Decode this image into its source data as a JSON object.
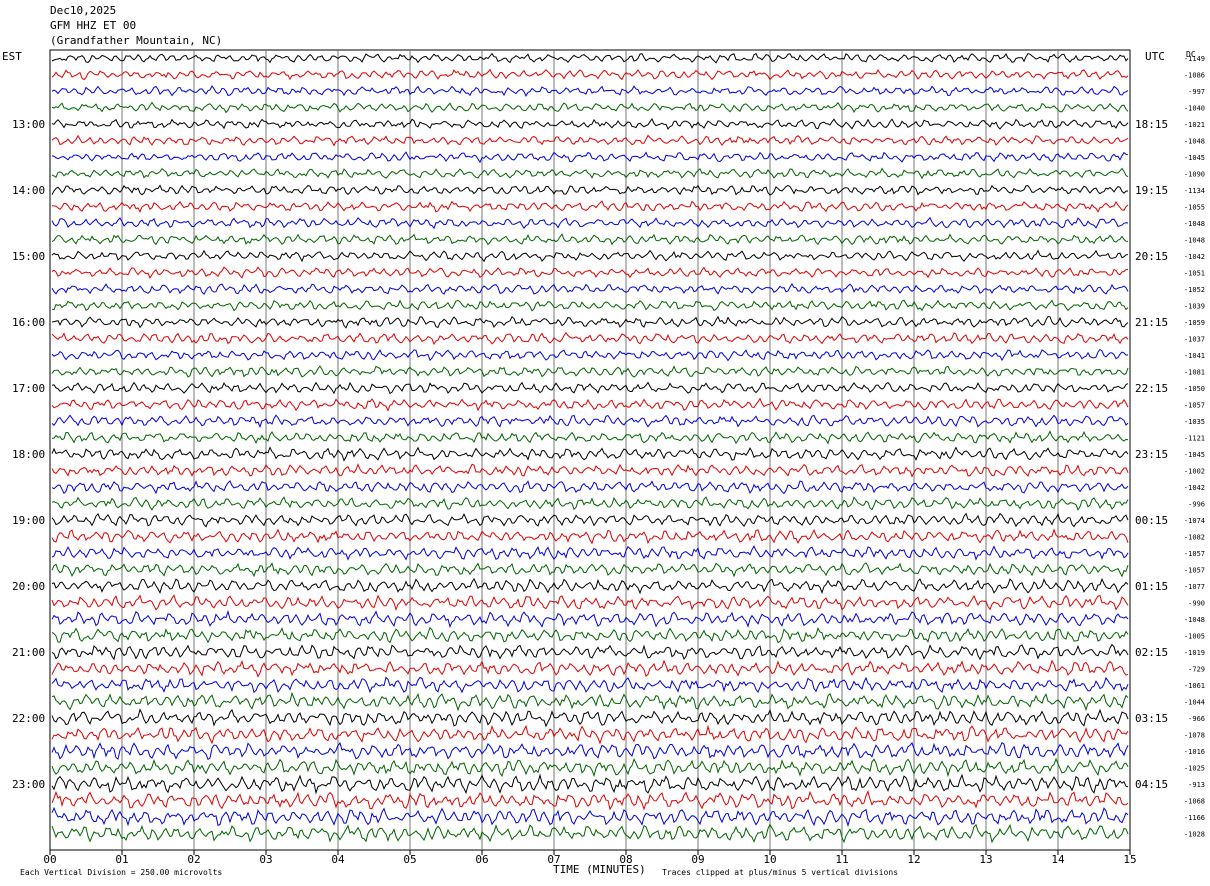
{
  "header": {
    "date": "Dec10,2025",
    "station": "GFM HHZ ET 00",
    "location": "(Grandfather Mountain, NC)"
  },
  "left_zone": "EST",
  "right_zone": "UTC",
  "dc_label": "DC",
  "footer": {
    "xlabel": "TIME (MINUTES)",
    "scale_note": "Each Vertical Division =  250.00 microvolts",
    "clip_note": "Traces clipped at plus/minus 5 vertical divisions"
  },
  "chart_data": {
    "type": "line",
    "title": "GFM HHZ ET 00",
    "xlabel": "TIME (MINUTES)",
    "xlim": [
      0,
      15
    ],
    "x_ticks": [
      "00",
      "01",
      "02",
      "03",
      "04",
      "05",
      "06",
      "07",
      "08",
      "09",
      "10",
      "11",
      "12",
      "13",
      "14",
      "15"
    ],
    "row_count": 48,
    "row_colors": [
      "#000000",
      "#e00000",
      "#0000e0",
      "#006400"
    ],
    "left_hour_labels": [
      {
        "row": 4,
        "label": "13:00"
      },
      {
        "row": 8,
        "label": "14:00"
      },
      {
        "row": 12,
        "label": "15:00"
      },
      {
        "row": 16,
        "label": "16:00"
      },
      {
        "row": 20,
        "label": "17:00"
      },
      {
        "row": 24,
        "label": "18:00"
      },
      {
        "row": 28,
        "label": "19:00"
      },
      {
        "row": 32,
        "label": "20:00"
      },
      {
        "row": 36,
        "label": "21:00"
      },
      {
        "row": 40,
        "label": "22:00"
      },
      {
        "row": 44,
        "label": "23:00"
      }
    ],
    "right_hour_labels": [
      {
        "row": 4,
        "label": "18:15"
      },
      {
        "row": 8,
        "label": "19:15"
      },
      {
        "row": 12,
        "label": "20:15"
      },
      {
        "row": 16,
        "label": "21:15"
      },
      {
        "row": 20,
        "label": "22:15"
      },
      {
        "row": 24,
        "label": "23:15"
      },
      {
        "row": 28,
        "label": "00:15"
      },
      {
        "row": 32,
        "label": "01:15"
      },
      {
        "row": 36,
        "label": "02:15"
      },
      {
        "row": 40,
        "label": "03:15"
      },
      {
        "row": 44,
        "label": "04:15"
      }
    ],
    "dc_offsets": [
      "-1149",
      "-1086",
      "-997",
      "-1040",
      "-1021",
      "-1048",
      "-1045",
      "-1090",
      "-1134",
      "-1055",
      "-1048",
      "-1048",
      "-1042",
      "-1051",
      "-1052",
      "-1039",
      "-1059",
      "-1037",
      "-1041",
      "-1081",
      "-1050",
      "-1057",
      "-1035",
      "-1121",
      "-1045",
      "-1002",
      "-1042",
      "-996",
      "-1074",
      "-1082",
      "-1057",
      "-1057",
      "-1077",
      "-990",
      "-1048",
      "-1005",
      "-1019",
      "-729",
      "-1061",
      "-1044",
      "-966",
      "-1078",
      "-1016",
      "-1025",
      "-913",
      "-1068",
      "-1166",
      "-1028"
    ],
    "amplitude_profile": [
      0.7,
      0.7,
      0.7,
      0.7,
      0.7,
      0.7,
      0.7,
      0.7,
      0.75,
      0.75,
      0.75,
      0.75,
      0.75,
      0.75,
      0.75,
      0.75,
      0.8,
      0.8,
      0.8,
      0.8,
      0.8,
      0.85,
      0.85,
      0.85,
      0.9,
      0.9,
      0.9,
      0.9,
      0.95,
      0.95,
      0.95,
      0.95,
      1.0,
      1.05,
      1.05,
      1.05,
      1.1,
      1.1,
      1.1,
      1.15,
      1.15,
      1.2,
      1.2,
      1.2,
      1.25,
      1.25,
      1.25,
      1.25
    ],
    "grid": true
  }
}
